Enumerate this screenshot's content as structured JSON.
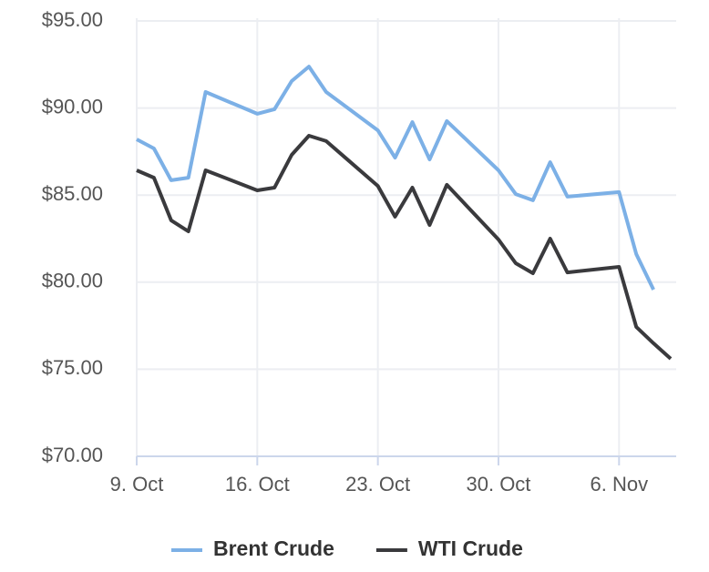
{
  "chart_data": {
    "type": "line",
    "x": [
      "9. Oct",
      "10. Oct",
      "11. Oct",
      "12. Oct",
      "13. Oct",
      "16. Oct",
      "17. Oct",
      "18. Oct",
      "19. Oct",
      "20. Oct",
      "23. Oct",
      "24. Oct",
      "25. Oct",
      "26. Oct",
      "27. Oct",
      "30. Oct",
      "31. Oct",
      "1. Nov",
      "2. Nov",
      "3. Nov",
      "6. Nov",
      "7. Nov",
      "8. Nov",
      "9. Nov"
    ],
    "series": [
      {
        "name": "Brent Crude",
        "color": "#7cb0e6",
        "values": [
          88.2,
          87.68,
          85.85,
          86.0,
          90.92,
          89.67,
          89.93,
          91.55,
          92.38,
          90.92,
          88.72,
          87.15,
          89.19,
          87.05,
          89.25,
          86.42,
          85.06,
          84.7,
          86.89,
          84.91,
          85.17,
          81.61,
          79.57,
          null
        ]
      },
      {
        "name": "WTI Crude",
        "color": "#3a3a3d",
        "values": [
          86.42,
          86.0,
          83.55,
          82.92,
          86.42,
          85.27,
          85.43,
          87.31,
          88.41,
          88.1,
          85.53,
          83.76,
          85.43,
          83.28,
          85.59,
          82.45,
          81.09,
          80.51,
          82.5,
          80.56,
          80.88,
          77.43,
          76.49,
          75.6
        ]
      }
    ],
    "xlim": [
      "9. Oct",
      "9. Nov"
    ],
    "xticks": [
      "9. Oct",
      "16. Oct",
      "23. Oct",
      "30. Oct",
      "6. Nov"
    ],
    "ylim": [
      70,
      95
    ],
    "yticks": [
      {
        "value": 70,
        "label": "$70.00"
      },
      {
        "value": 75,
        "label": "$75.00"
      },
      {
        "value": 80,
        "label": "$80.00"
      },
      {
        "value": 85,
        "label": "$85.00"
      },
      {
        "value": 90,
        "label": "$90.00"
      },
      {
        "value": 95,
        "label": "$95.00"
      }
    ],
    "grid": true,
    "legend": "bottom"
  }
}
